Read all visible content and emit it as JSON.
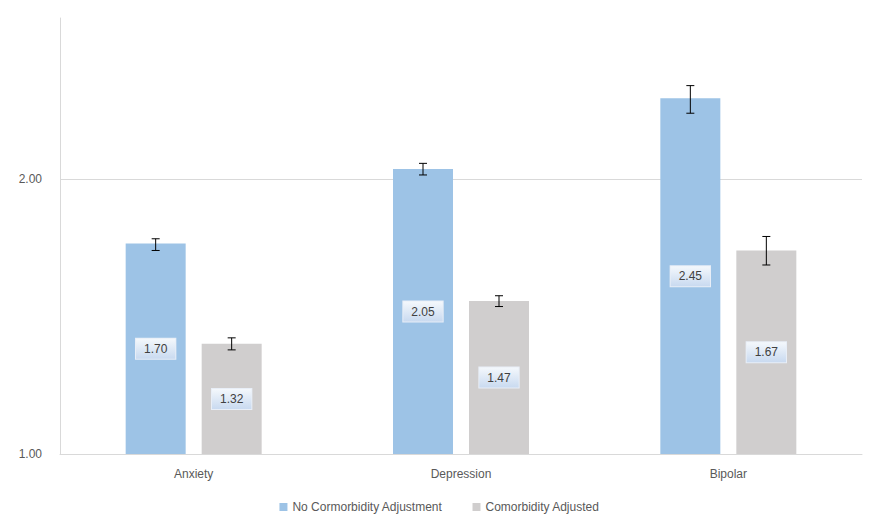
{
  "chart_data": {
    "type": "bar",
    "categories": [
      "Anxiety",
      "Depression",
      "Bipolar"
    ],
    "series": [
      {
        "name": "No Cormorbidity Adjustment",
        "color": "#9dc3e6",
        "values": [
          1.7,
          2.05,
          2.45
        ],
        "value_labels": [
          "1.70",
          "2.05",
          "2.45"
        ],
        "errors": [
          [
            1.67,
            1.72
          ],
          [
            2.02,
            2.08
          ],
          [
            2.36,
            2.53
          ]
        ]
      },
      {
        "name": "Comorbidity Adjusted",
        "color": "#d0cece",
        "values": [
          1.32,
          1.47,
          1.67
        ],
        "value_labels": [
          "1.32",
          "1.47",
          "1.67"
        ],
        "errors": [
          [
            1.3,
            1.34
          ],
          [
            1.45,
            1.49
          ],
          [
            1.61,
            1.73
          ]
        ]
      }
    ],
    "ylim": [
      1,
      3
    ],
    "yticks": [
      {
        "value": 1,
        "label": "1.00"
      },
      {
        "value": 2,
        "label": "2.00"
      }
    ],
    "log": "y",
    "grid": true,
    "legend": "bottom",
    "data_labels": true
  }
}
